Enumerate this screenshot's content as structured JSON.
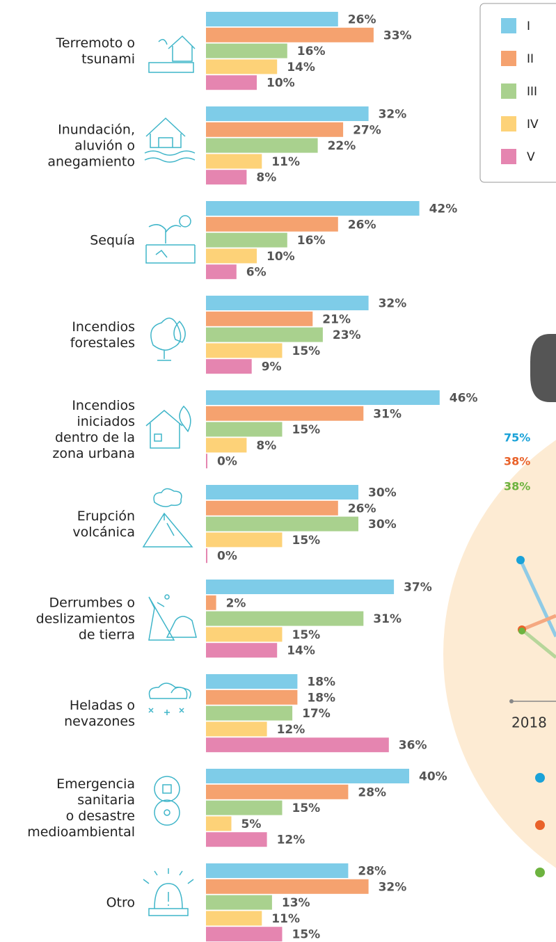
{
  "chart_data": {
    "type": "bar",
    "categories": [
      "Terremoto o\ntsunami",
      "Inundación,\naluvión o\nanegamiento",
      "Sequía",
      "Incendios\nforestales",
      "Incendios\niniciados\ndentro de la\nzona urbana",
      "Erupción\nvolcánica",
      "Derrumbes o\ndeslizamientos\nde tierra",
      "Heladas o\nnevazones",
      "Emergencia\nsanitaria\no desastre\nmedioambiental",
      "Otro"
    ],
    "series": [
      {
        "name": "I",
        "color": "#7ecce8",
        "values": [
          26,
          32,
          42,
          32,
          46,
          30,
          37,
          18,
          40,
          28
        ],
        "value_labels": [
          "26%",
          "32%",
          "42%",
          "32%",
          "46%",
          "30%",
          "37%",
          "18%",
          "40%",
          "28%"
        ]
      },
      {
        "name": "II",
        "color": "#f5a26f",
        "values": [
          33,
          27,
          26,
          21,
          31,
          26,
          2,
          18,
          28,
          32
        ],
        "value_labels": [
          "33%",
          "27%",
          "26%",
          "21%",
          "31%",
          "26%",
          "2%",
          "18%",
          "28%",
          "32%"
        ]
      },
      {
        "name": "III",
        "color": "#a9d18e",
        "values": [
          16,
          22,
          16,
          23,
          15,
          30,
          31,
          17,
          15,
          13
        ],
        "value_labels": [
          "16%",
          "22%",
          "16%",
          "23%",
          "15%",
          "30%",
          "31%",
          "17%",
          "15%",
          "13%"
        ]
      },
      {
        "name": "IV",
        "color": "#fdd278",
        "values": [
          14,
          11,
          10,
          15,
          8,
          15,
          15,
          12,
          5,
          11
        ],
        "value_labels": [
          "14%",
          "11%",
          "10%",
          "15%",
          "8%",
          "15%",
          "15%",
          "12%",
          "5%",
          "11%"
        ]
      },
      {
        "name": "V",
        "color": "#e585b0",
        "values": [
          10,
          8,
          6,
          9,
          0,
          0,
          14,
          36,
          12,
          15
        ],
        "value_labels": [
          "10%",
          "8%",
          "6%",
          "9%",
          "0%",
          "0%",
          "14%",
          "36%",
          "12%",
          "15%"
        ]
      }
    ]
  },
  "side": {
    "labels": [
      "75%",
      "38%",
      "38%"
    ],
    "year": "2018"
  }
}
